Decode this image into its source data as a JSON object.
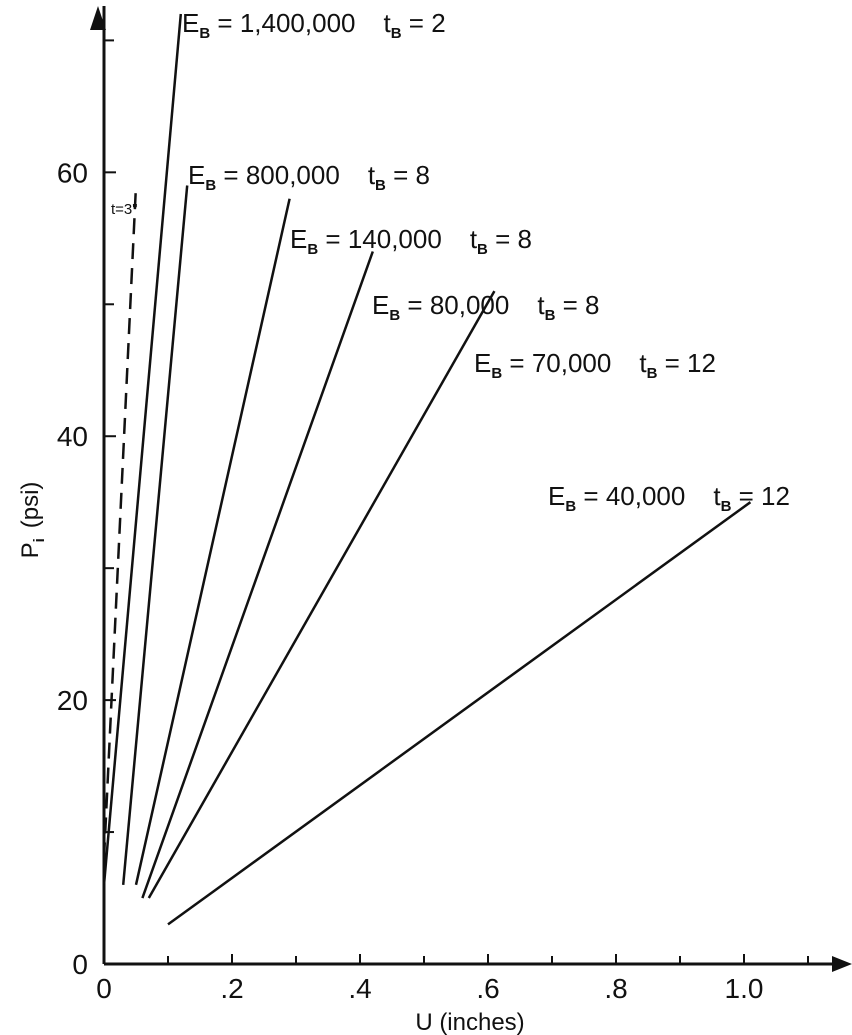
{
  "chart_data": {
    "type": "line",
    "title": "",
    "xlabel": "U (inches)",
    "ylabel": "P",
    "ylabel_sub": "i",
    "ylabel_unit": "(psi)",
    "xlim": [
      0,
      1.15
    ],
    "ylim": [
      0,
      72
    ],
    "x_ticks": [
      {
        "value": 0,
        "label": "0"
      },
      {
        "value": 0.2,
        "label": ".2"
      },
      {
        "value": 0.4,
        "label": ".4"
      },
      {
        "value": 0.6,
        "label": ".6"
      },
      {
        "value": 0.8,
        "label": ".8"
      },
      {
        "value": 1.0,
        "label": "1.0"
      }
    ],
    "x_minor_ticks": [
      0.1,
      0.3,
      0.5,
      0.7,
      0.9,
      1.1
    ],
    "y_ticks": [
      {
        "value": 0,
        "label": "0"
      },
      {
        "value": 20,
        "label": "20"
      },
      {
        "value": 40,
        "label": "40"
      },
      {
        "value": 60,
        "label": "60"
      }
    ],
    "y_minor_ticks": [
      10,
      30,
      50,
      70
    ],
    "grid": false,
    "series": [
      {
        "eb": "1,400,000",
        "tb": "2",
        "style": "solid",
        "points": [
          [
            0.0,
            6
          ],
          [
            0.12,
            72
          ]
        ]
      },
      {
        "eb": "800,000",
        "tb": "8",
        "style": "solid",
        "points": [
          [
            0.03,
            6
          ],
          [
            0.13,
            59
          ]
        ]
      },
      {
        "eb": "140,000",
        "tb": "8",
        "style": "solid",
        "points": [
          [
            0.05,
            6
          ],
          [
            0.29,
            58
          ]
        ]
      },
      {
        "eb": "80,000",
        "tb": "8",
        "style": "solid",
        "points": [
          [
            0.06,
            5
          ],
          [
            0.42,
            54
          ]
        ]
      },
      {
        "eb": "70,000",
        "tb": "12",
        "style": "solid",
        "points": [
          [
            0.07,
            5
          ],
          [
            0.61,
            51
          ]
        ]
      },
      {
        "eb": "40,000",
        "tb": "12",
        "style": "solid",
        "points": [
          [
            0.1,
            3
          ],
          [
            1.01,
            35
          ]
        ]
      },
      {
        "label": "t=3\"",
        "style": "dashed",
        "points": [
          [
            0.0,
            8
          ],
          [
            0.05,
            59
          ]
        ]
      }
    ]
  }
}
